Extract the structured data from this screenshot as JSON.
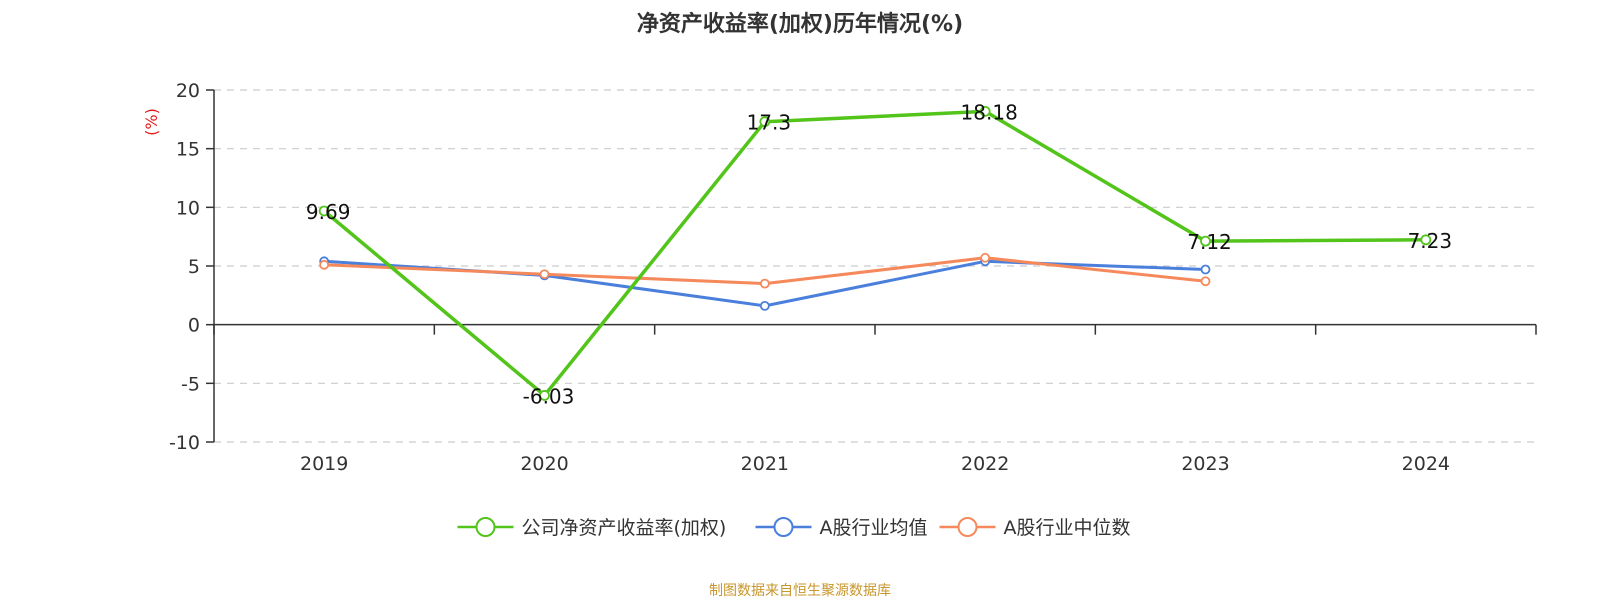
{
  "chart_data": {
    "type": "line",
    "title": "净资产收益率(加权)历年情况(%)",
    "ylabel": "(%)",
    "xlabel": "",
    "categories": [
      "2019",
      "2020",
      "2021",
      "2022",
      "2023",
      "2024"
    ],
    "ylim": [
      -10,
      20
    ],
    "yticks": [
      20,
      15,
      10,
      5,
      0,
      -5,
      -10
    ],
    "grid": true,
    "legend_position": "bottom",
    "series": [
      {
        "name": "公司净资产收益率(加权)",
        "color": "#52c41a",
        "values": [
          9.69,
          -6.03,
          17.3,
          18.18,
          7.12,
          7.23
        ],
        "labels": [
          "9.69",
          "-6.03",
          "17.3",
          "18.18",
          "7.12",
          "7.23"
        ]
      },
      {
        "name": "A股行业均值",
        "color": "#4a7fdc",
        "values": [
          5.4,
          4.2,
          1.6,
          5.4,
          4.7,
          null
        ]
      },
      {
        "name": "A股行业中位数",
        "color": "#f5895c",
        "values": [
          5.1,
          4.3,
          3.5,
          5.7,
          3.7,
          null
        ]
      }
    ]
  },
  "footer": {
    "source": "制图数据来自恒生聚源数据库"
  }
}
